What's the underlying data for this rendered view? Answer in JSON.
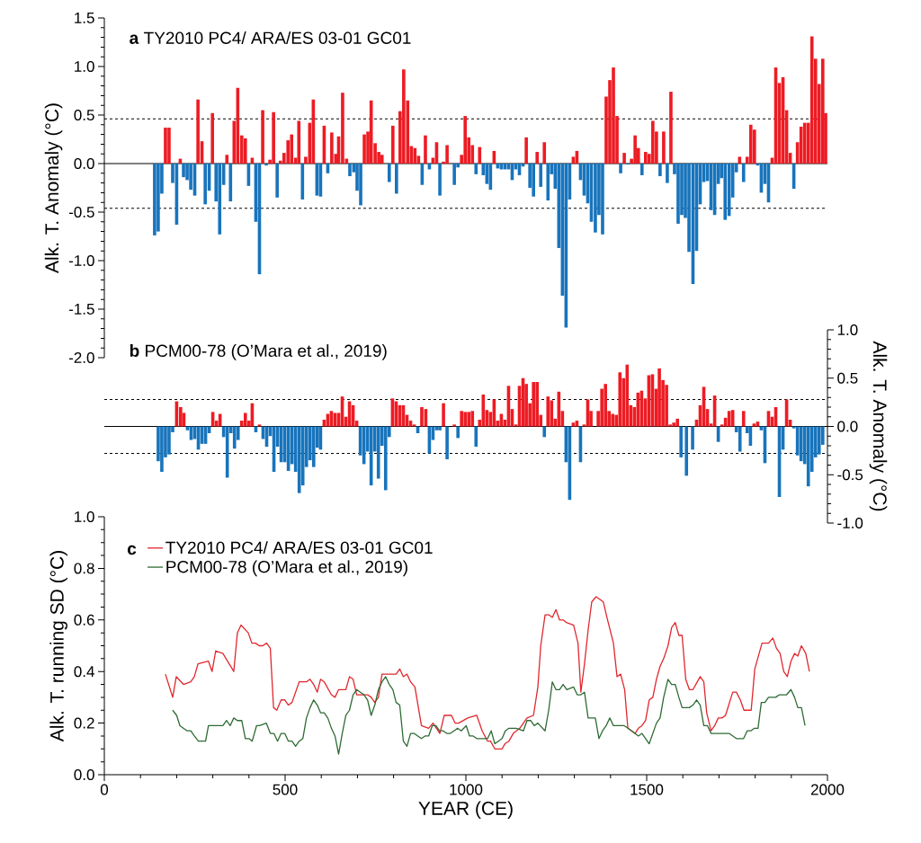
{
  "chart_data": [
    {
      "type": "bar",
      "title": "**a**  TY2010 PC4/ ARA/ES 03-01 GC01",
      "ylabel": "Alk. T. Anomaly (°C)",
      "xlim": [
        0,
        2000
      ],
      "ylim": [
        -2.0,
        1.5
      ],
      "yticks": [
        {
          "value": -2,
          "label": "-2.0"
        },
        {
          "value": -1.5,
          "label": "-1.5"
        },
        {
          "value": -1,
          "label": "-1.0"
        },
        {
          "value": -0.5,
          "label": "-0.5"
        },
        {
          "value": 0,
          "label": "0.0"
        },
        {
          "value": 0.5,
          "label": "0.5"
        },
        {
          "value": 1,
          "label": "1.0"
        },
        {
          "value": 1.5,
          "label": "1.5"
        }
      ],
      "tick_labels": "y",
      "ref_lines": [
        {
          "axis": "y",
          "value": 0,
          "color": "#000000",
          "line_style": "solid"
        },
        {
          "axis": "y",
          "value": 0.46,
          "color": "#000000",
          "line_style": "dashed"
        },
        {
          "axis": "y",
          "value": -0.46,
          "color": "#000000",
          "line_style": "dashed"
        }
      ],
      "series": [
        {
          "color": "#ed1c24",
          "x": [
            169,
            179,
            210,
            259,
            270,
            299,
            339,
            359,
            369,
            380,
            390,
            409,
            438,
            458,
            468,
            487,
            497,
            508,
            518,
            529,
            538,
            557,
            568,
            578,
            608,
            629,
            640,
            648,
            659,
            670,
            719,
            729,
            738,
            749,
            759,
            768,
            798,
            818,
            828,
            839,
            849,
            859,
            869,
            888,
            909,
            919,
            938,
            948,
            988,
            998,
            1008,
            1018,
            1038,
            1078,
            1167,
            1197,
            1217,
            1297,
            1307,
            1388,
            1398,
            1408,
            1418,
            1438,
            1458,
            1468,
            1477,
            1497,
            1507,
            1517,
            1527,
            1547,
            1567,
            1757,
            1778,
            1788,
            1798,
            1847,
            1857,
            1867,
            1877,
            1887,
            1897,
            1917,
            1927,
            1937,
            1947,
            1957,
            1967,
            1977,
            1987,
            1995
          ],
          "values": [
            0.37,
            0.37,
            0.05,
            0.66,
            0.23,
            0.52,
            0.09,
            0.44,
            0.78,
            0.29,
            0.26,
            0.06,
            0.55,
            0.04,
            0.53,
            0.03,
            0.11,
            0.24,
            0.3,
            0.06,
            0.44,
            0.07,
            0.42,
            0.66,
            0.39,
            0.32,
            0.1,
            0.28,
            0.73,
            0.05,
            0.3,
            0.33,
            0.65,
            0.21,
            0.12,
            0.09,
            0.39,
            0.54,
            0.97,
            0.65,
            0.18,
            0.16,
            0.08,
            0.29,
            0.06,
            0.22,
            0.02,
            0.19,
            0.09,
            0.49,
            0.27,
            0.19,
            0.17,
            0.13,
            0.27,
            0.12,
            0.22,
            0.07,
            0.13,
            0.69,
            0.86,
            0.99,
            0.49,
            0.11,
            0.05,
            0.29,
            0.16,
            0.12,
            0.1,
            0.44,
            0.33,
            0.33,
            0.74,
            0.07,
            0.07,
            0.4,
            0.35,
            0.06,
            0.99,
            0.83,
            0.89,
            0.55,
            0.11,
            0.22,
            0.38,
            0.42,
            0.42,
            1.31,
            1.08,
            0.82,
            1.08,
            0.52
          ]
        },
        {
          "color": "#1874bc",
          "x": [
            139,
            149,
            159,
            189,
            200,
            219,
            229,
            239,
            250,
            279,
            290,
            309,
            319,
            330,
            349,
            399,
            419,
            429,
            448,
            478,
            548,
            588,
            598,
            618,
            679,
            690,
            699,
            709,
            788,
            808,
            879,
            899,
            928,
            968,
            978,
            1028,
            1048,
            1058,
            1068,
            1088,
            1098,
            1108,
            1118,
            1128,
            1138,
            1148,
            1158,
            1177,
            1187,
            1207,
            1227,
            1237,
            1247,
            1257,
            1267,
            1277,
            1287,
            1317,
            1327,
            1337,
            1347,
            1358,
            1368,
            1378,
            1428,
            1448,
            1487,
            1537,
            1557,
            1577,
            1587,
            1597,
            1607,
            1617,
            1628,
            1638,
            1648,
            1658,
            1668,
            1678,
            1688,
            1698,
            1707,
            1717,
            1728,
            1738,
            1748,
            1768,
            1807,
            1817,
            1827,
            1837,
            1907
          ],
          "values": [
            -0.74,
            -0.7,
            -0.31,
            -0.2,
            -0.63,
            -0.14,
            -0.17,
            -0.27,
            -0.33,
            -0.42,
            -0.28,
            -0.39,
            -0.73,
            -0.22,
            -0.39,
            -0.23,
            -0.6,
            -1.14,
            -0.02,
            -0.35,
            -0.37,
            -0.33,
            -0.34,
            -0.1,
            -0.13,
            -0.09,
            -0.28,
            -0.43,
            -0.19,
            -0.31,
            -0.22,
            -0.06,
            -0.33,
            -0.22,
            -0.04,
            -0.11,
            -0.12,
            -0.21,
            -0.27,
            -0.05,
            -0.06,
            -0.06,
            -0.06,
            -0.17,
            -0.06,
            -0.12,
            -0.03,
            -0.25,
            -0.34,
            -0.24,
            -0.38,
            -0.11,
            -0.26,
            -0.87,
            -1.36,
            -1.69,
            -0.37,
            -0.17,
            -0.33,
            -0.41,
            -0.6,
            -0.71,
            -0.53,
            -0.73,
            -0.1,
            -0.01,
            -0.12,
            -0.13,
            -0.2,
            -0.11,
            -0.62,
            -0.53,
            -0.56,
            -0.91,
            -1.24,
            -0.9,
            -0.42,
            -0.19,
            -0.18,
            -0.48,
            -0.53,
            -0.21,
            -0.15,
            -0.58,
            -0.54,
            -0.35,
            -0.09,
            -0.19,
            -0.02,
            -0.3,
            -0.21,
            -0.4,
            -0.26
          ]
        }
      ]
    },
    {
      "type": "bar",
      "title": "**b**  PCM00-78 (O’Mara et al., 2019)",
      "y2label": "Alk. T. Anomaly (°C)",
      "xlim": [
        0,
        2000
      ],
      "y2lim": [
        -1.0,
        1.0
      ],
      "y2ticks": [
        {
          "value": -1,
          "label": "-1.0"
        },
        {
          "value": -0.5,
          "label": "-0.5"
        },
        {
          "value": 0,
          "label": "0.0"
        },
        {
          "value": 0.5,
          "label": "0.5"
        },
        {
          "value": 1,
          "label": "1.0"
        }
      ],
      "tick_labels": "y2",
      "ref_lines": [
        {
          "axis": "y2",
          "value": 0,
          "color": "#000000",
          "line_style": "solid"
        },
        {
          "axis": "y2",
          "value": 0.28,
          "color": "#000000",
          "line_style": "dashed"
        },
        {
          "axis": "y2",
          "value": -0.28,
          "color": "#000000",
          "line_style": "dashed"
        }
      ],
      "series": [
        {
          "color": "#ed1c24",
          "axis": "y2",
          "x": [
            200,
            211,
            220,
            300,
            310,
            320,
            380,
            390,
            400,
            409,
            429,
            608,
            618,
            628,
            638,
            648,
            658,
            668,
            678,
            688,
            698,
            797,
            807,
            817,
            827,
            837,
            847,
            857,
            878,
            889,
            938,
            968,
            988,
            998,
            1008,
            1018,
            1038,
            1048,
            1058,
            1068,
            1078,
            1088,
            1098,
            1108,
            1118,
            1128,
            1138,
            1148,
            1158,
            1167,
            1177,
            1187,
            1197,
            1207,
            1227,
            1237,
            1247,
            1257,
            1267,
            1297,
            1307,
            1327,
            1337,
            1346,
            1366,
            1376,
            1386,
            1396,
            1406,
            1416,
            1426,
            1436,
            1446,
            1456,
            1466,
            1476,
            1486,
            1496,
            1506,
            1516,
            1526,
            1535,
            1545,
            1555,
            1565,
            1575,
            1585,
            1638,
            1648,
            1658,
            1668,
            1678,
            1688,
            1708,
            1718,
            1728,
            1738,
            1768,
            1797,
            1807,
            1837,
            1847,
            1857,
            1887,
            1897
          ],
          "values": [
            0.26,
            0.2,
            0.14,
            0.15,
            0.06,
            0.13,
            0.06,
            0.14,
            0.06,
            0.24,
            0.02,
            0.07,
            0.13,
            0.16,
            0.14,
            0.14,
            0.31,
            0.1,
            0.26,
            0.22,
            0.06,
            0.29,
            0.26,
            0.22,
            0.22,
            0.12,
            0.06,
            0.02,
            0.2,
            0.18,
            0.24,
            0.02,
            0.16,
            0.15,
            0.15,
            0.16,
            0.07,
            0.33,
            0.17,
            0.15,
            0.28,
            0.06,
            0.13,
            0.07,
            0.42,
            0.18,
            0.02,
            0.42,
            0.5,
            0.44,
            0.24,
            0.46,
            0.46,
            0.12,
            0.31,
            0.27,
            0.08,
            0.36,
            0.16,
            0.04,
            0.06,
            0.02,
            0.28,
            0.16,
            0.16,
            0.39,
            0.44,
            0.16,
            0.13,
            0.12,
            0.56,
            0.5,
            0.64,
            0.22,
            0.2,
            0.35,
            0.37,
            0.29,
            0.53,
            0.54,
            0.39,
            0.6,
            0.48,
            0.43,
            0.02,
            0.04,
            0.08,
            0.07,
            0.22,
            0.41,
            0.18,
            0.03,
            0.32,
            0.02,
            0.09,
            0.16,
            0.17,
            0.16,
            0.03,
            0.05,
            0.16,
            0.1,
            0.2,
            0.28,
            0.07
          ]
        },
        {
          "color": "#1874bc",
          "axis": "y2",
          "x": [
            149,
            159,
            169,
            179,
            189,
            230,
            240,
            250,
            260,
            270,
            280,
            290,
            330,
            340,
            350,
            360,
            370,
            419,
            439,
            449,
            459,
            469,
            479,
            489,
            499,
            509,
            519,
            529,
            539,
            549,
            559,
            569,
            579,
            589,
            598,
            708,
            718,
            728,
            738,
            748,
            758,
            768,
            778,
            788,
            867,
            899,
            909,
            919,
            928,
            948,
            978,
            1028,
            1217,
            1277,
            1287,
            1317,
            1595,
            1610,
            1627,
            1698,
            1748,
            1758,
            1778,
            1787,
            1817,
            1827,
            1867,
            1877,
            1907,
            1917,
            1927,
            1937,
            1947,
            1957,
            1967,
            1977,
            1987
          ],
          "values": [
            -0.36,
            -0.47,
            -0.32,
            -0.29,
            -0.06,
            -0.04,
            -0.14,
            -0.13,
            -0.24,
            -0.18,
            -0.18,
            -0.07,
            -0.11,
            -0.53,
            -0.07,
            -0.23,
            -0.14,
            -0.06,
            -0.13,
            -0.21,
            -0.1,
            -0.47,
            -0.21,
            -0.37,
            -0.37,
            -0.46,
            -0.39,
            -0.47,
            -0.69,
            -0.61,
            -0.42,
            -0.35,
            -0.42,
            -0.22,
            -0.24,
            -0.3,
            -0.39,
            -0.26,
            -0.61,
            -0.26,
            -0.54,
            -0.2,
            -0.66,
            -0.11,
            -0.07,
            -0.28,
            -0.14,
            -0.04,
            -0.04,
            -0.34,
            -0.12,
            -0.21,
            -0.11,
            -0.37,
            -0.76,
            -0.37,
            -0.32,
            -0.51,
            -0.24,
            -0.16,
            -0.06,
            -0.26,
            -0.07,
            -0.2,
            -0.04,
            -0.38,
            -0.73,
            -0.24,
            -0.02,
            -0.3,
            -0.36,
            -0.39,
            -0.62,
            -0.47,
            -0.32,
            -0.29,
            -0.19
          ]
        }
      ]
    },
    {
      "type": "line",
      "title": "**c**",
      "xlabel": "YEAR (CE)",
      "ylabel": "Alk. T. running SD (°C)",
      "xlim": [
        0,
        2000
      ],
      "ylim": [
        0,
        1.0
      ],
      "xticks": [
        0,
        500,
        1000,
        1500,
        2000
      ],
      "yticks": [
        {
          "value": 0,
          "label": "0.0"
        },
        {
          "value": 0.2,
          "label": "0.2"
        },
        {
          "value": 0.4,
          "label": "0.4"
        },
        {
          "value": 0.6,
          "label": "0.6"
        },
        {
          "value": 0.8,
          "label": "0.8"
        },
        {
          "value": 1,
          "label": "1.0"
        }
      ],
      "legend": "top left",
      "series": [
        {
          "name": "TY2010 PC4/ ARA/ES 03-01 GC01",
          "color": "#e0282e",
          "x": [
            169,
            189,
            199,
            219,
            239,
            249,
            259,
            288,
            298,
            308,
            328,
            358,
            368,
            378,
            398,
            408,
            418,
            428,
            438,
            449,
            459,
            468,
            477,
            489,
            499,
            509,
            519,
            539,
            549,
            559,
            569,
            579,
            589,
            598,
            608,
            628,
            638,
            648,
            668,
            678,
            688,
            698,
            718,
            728,
            738,
            748,
            758,
            768,
            807,
            817,
            827,
            837,
            847,
            859,
            877,
            897,
            909,
            928,
            940,
            950,
            960,
            970,
            980,
            1005,
            1030,
            1045,
            1060,
            1068,
            1080,
            1090,
            1100,
            1108,
            1119,
            1131,
            1149,
            1169,
            1187,
            1199,
            1207,
            1219,
            1229,
            1239,
            1249,
            1259,
            1269,
            1278,
            1298,
            1310,
            1318,
            1328,
            1338,
            1348,
            1360,
            1370,
            1380,
            1390,
            1408,
            1418,
            1428,
            1439,
            1448,
            1458,
            1468,
            1477,
            1487,
            1497,
            1507,
            1517,
            1527,
            1537,
            1547,
            1559,
            1569,
            1579,
            1589,
            1598,
            1608,
            1618,
            1628,
            1648,
            1658,
            1666,
            1678,
            1688,
            1698,
            1708,
            1718,
            1738,
            1748,
            1759,
            1769,
            1779,
            1789,
            1799,
            1819,
            1837,
            1849,
            1859,
            1869,
            1879,
            1889,
            1899,
            1909,
            1918,
            1928,
            1940,
            1950
          ],
          "values": [
            0.39,
            0.3,
            0.38,
            0.35,
            0.36,
            0.38,
            0.43,
            0.44,
            0.4,
            0.48,
            0.47,
            0.4,
            0.55,
            0.58,
            0.55,
            0.51,
            0.51,
            0.5,
            0.5,
            0.51,
            0.49,
            0.26,
            0.25,
            0.29,
            0.29,
            0.27,
            0.28,
            0.36,
            0.36,
            0.36,
            0.37,
            0.35,
            0.32,
            0.37,
            0.36,
            0.31,
            0.3,
            0.33,
            0.33,
            0.38,
            0.37,
            0.31,
            0.31,
            0.31,
            0.3,
            0.28,
            0.3,
            0.39,
            0.39,
            0.41,
            0.38,
            0.39,
            0.36,
            0.34,
            0.19,
            0.18,
            0.2,
            0.16,
            0.23,
            0.23,
            0.23,
            0.2,
            0.2,
            0.22,
            0.23,
            0.17,
            0.13,
            0.13,
            0.1,
            0.1,
            0.1,
            0.12,
            0.13,
            0.16,
            0.18,
            0.22,
            0.23,
            0.34,
            0.5,
            0.62,
            0.62,
            0.61,
            0.64,
            0.6,
            0.6,
            0.59,
            0.58,
            0.51,
            0.32,
            0.43,
            0.56,
            0.67,
            0.69,
            0.68,
            0.67,
            0.61,
            0.51,
            0.38,
            0.39,
            0.33,
            0.18,
            0.17,
            0.16,
            0.18,
            0.19,
            0.21,
            0.29,
            0.3,
            0.37,
            0.42,
            0.45,
            0.5,
            0.57,
            0.59,
            0.54,
            0.54,
            0.37,
            0.33,
            0.33,
            0.38,
            0.36,
            0.24,
            0.17,
            0.19,
            0.22,
            0.22,
            0.23,
            0.32,
            0.32,
            0.29,
            0.25,
            0.25,
            0.25,
            0.41,
            0.51,
            0.51,
            0.53,
            0.49,
            0.47,
            0.4,
            0.38,
            0.44,
            0.47,
            0.46,
            0.5,
            0.47,
            0.4
          ]
        },
        {
          "name": "PCM00-78 (O’Mara et al., 2019)",
          "color": "#2e6b34",
          "x": [
            189,
            200,
            209,
            219,
            229,
            239,
            249,
            260,
            280,
            288,
            318,
            328,
            338,
            348,
            358,
            368,
            380,
            390,
            400,
            409,
            421,
            429,
            448,
            459,
            469,
            479,
            489,
            499,
            509,
            519,
            529,
            539,
            549,
            559,
            569,
            579,
            589,
            598,
            608,
            618,
            628,
            638,
            648,
            658,
            668,
            678,
            688,
            698,
            708,
            718,
            728,
            738,
            748,
            758,
            768,
            778,
            788,
            798,
            807,
            817,
            827,
            837,
            847,
            857,
            867,
            877,
            887,
            897,
            907,
            917,
            927,
            937,
            947,
            957,
            967,
            977,
            987,
            1001,
            1010,
            1020,
            1030,
            1050,
            1060,
            1070,
            1080,
            1090,
            1100,
            1109,
            1119,
            1139,
            1159,
            1169,
            1179,
            1189,
            1199,
            1219,
            1229,
            1239,
            1249,
            1259,
            1269,
            1279,
            1298,
            1308,
            1318,
            1328,
            1338,
            1358,
            1368,
            1378,
            1388,
            1398,
            1408,
            1418,
            1438,
            1448,
            1458,
            1477,
            1487,
            1507,
            1527,
            1537,
            1547,
            1559,
            1569,
            1579,
            1589,
            1598,
            1618,
            1628,
            1638,
            1648,
            1658,
            1668,
            1678,
            1688,
            1698,
            1728,
            1738,
            1748,
            1768,
            1778,
            1788,
            1798,
            1808,
            1817,
            1827,
            1837,
            1857,
            1867,
            1887,
            1899,
            1909,
            1918,
            1928,
            1938
          ],
          "values": [
            0.25,
            0.23,
            0.19,
            0.18,
            0.17,
            0.17,
            0.15,
            0.13,
            0.13,
            0.19,
            0.19,
            0.19,
            0.21,
            0.19,
            0.22,
            0.21,
            0.21,
            0.14,
            0.14,
            0.13,
            0.19,
            0.19,
            0.2,
            0.16,
            0.16,
            0.13,
            0.16,
            0.16,
            0.13,
            0.13,
            0.11,
            0.13,
            0.14,
            0.22,
            0.26,
            0.29,
            0.27,
            0.24,
            0.24,
            0.22,
            0.18,
            0.15,
            0.08,
            0.16,
            0.23,
            0.25,
            0.31,
            0.33,
            0.32,
            0.31,
            0.29,
            0.23,
            0.27,
            0.33,
            0.36,
            0.38,
            0.35,
            0.33,
            0.28,
            0.27,
            0.13,
            0.11,
            0.16,
            0.16,
            0.15,
            0.14,
            0.15,
            0.15,
            0.19,
            0.19,
            0.17,
            0.17,
            0.16,
            0.16,
            0.17,
            0.18,
            0.17,
            0.19,
            0.15,
            0.15,
            0.14,
            0.14,
            0.14,
            0.17,
            0.12,
            0.13,
            0.14,
            0.17,
            0.18,
            0.18,
            0.17,
            0.21,
            0.21,
            0.19,
            0.2,
            0.17,
            0.25,
            0.36,
            0.33,
            0.33,
            0.35,
            0.33,
            0.34,
            0.31,
            0.31,
            0.32,
            0.22,
            0.22,
            0.14,
            0.17,
            0.19,
            0.22,
            0.19,
            0.19,
            0.19,
            0.18,
            0.17,
            0.15,
            0.16,
            0.12,
            0.2,
            0.22,
            0.3,
            0.37,
            0.35,
            0.35,
            0.3,
            0.26,
            0.26,
            0.27,
            0.29,
            0.27,
            0.19,
            0.19,
            0.16,
            0.16,
            0.16,
            0.16,
            0.15,
            0.14,
            0.14,
            0.17,
            0.17,
            0.18,
            0.18,
            0.28,
            0.28,
            0.3,
            0.3,
            0.31,
            0.31,
            0.33,
            0.3,
            0.26,
            0.26,
            0.19
          ]
        }
      ]
    }
  ]
}
